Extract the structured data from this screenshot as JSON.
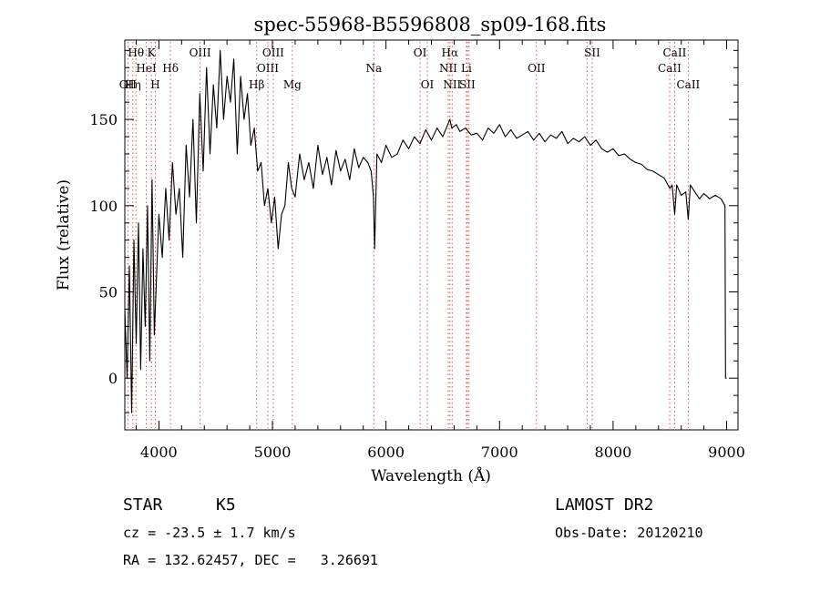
{
  "chart_data": {
    "type": "line",
    "title": "spec-55968-B5596808_sp09-168.fits",
    "xlabel": "Wavelength (Å)",
    "ylabel": "Flux (relative)",
    "xlim": [
      3700,
      9100
    ],
    "ylim": [
      -30,
      196
    ],
    "xticks": [
      4000,
      5000,
      6000,
      7000,
      8000,
      9000
    ],
    "yticks": [
      0,
      50,
      100,
      150
    ],
    "grid": false,
    "legend": "none",
    "line_color": "#000000",
    "marker_color": "#e05050",
    "series": [
      {
        "x": [
          3700,
          3720,
          3740,
          3760,
          3780,
          3800,
          3820,
          3840,
          3860,
          3880,
          3900,
          3920,
          3940,
          3960,
          3980,
          4000,
          4030,
          4060,
          4090,
          4120,
          4150,
          4180,
          4210,
          4240,
          4270,
          4300,
          4330,
          4360,
          4390,
          4420,
          4450,
          4480,
          4510,
          4540,
          4570,
          4600,
          4630,
          4660,
          4690,
          4720,
          4750,
          4780,
          4810,
          4840,
          4870,
          4900,
          4930,
          4960,
          4990,
          5020,
          5050,
          5080,
          5110,
          5140,
          5170,
          5200,
          5240,
          5280,
          5320,
          5360,
          5400,
          5440,
          5480,
          5520,
          5560,
          5600,
          5640,
          5680,
          5720,
          5760,
          5800,
          5840,
          5870,
          5890,
          5900,
          5920,
          5960,
          6000,
          6050,
          6100,
          6150,
          6200,
          6250,
          6300,
          6350,
          6400,
          6450,
          6500,
          6550,
          6563,
          6580,
          6620,
          6650,
          6700,
          6750,
          6800,
          6850,
          6900,
          6950,
          7000,
          7050,
          7100,
          7150,
          7200,
          7250,
          7300,
          7350,
          7400,
          7450,
          7500,
          7550,
          7600,
          7650,
          7700,
          7750,
          7800,
          7850,
          7900,
          7950,
          8000,
          8050,
          8100,
          8150,
          8200,
          8250,
          8300,
          8350,
          8400,
          8450,
          8500,
          8520,
          8542,
          8560,
          8600,
          8640,
          8662,
          8680,
          8720,
          8760,
          8800,
          8850,
          8900,
          8950,
          8985,
          8990,
          9000
        ],
        "y": [
          40,
          0,
          65,
          -20,
          80,
          20,
          90,
          5,
          75,
          30,
          100,
          10,
          115,
          25,
          60,
          95,
          70,
          110,
          80,
          125,
          95,
          110,
          70,
          135,
          105,
          150,
          90,
          165,
          120,
          180,
          130,
          170,
          145,
          190,
          150,
          175,
          160,
          185,
          130,
          175,
          150,
          165,
          135,
          145,
          120,
          125,
          100,
          110,
          90,
          105,
          75,
          95,
          100,
          125,
          110,
          105,
          130,
          115,
          125,
          110,
          135,
          118,
          128,
          112,
          132,
          120,
          127,
          115,
          133,
          122,
          128,
          125,
          120,
          105,
          75,
          130,
          125,
          135,
          128,
          130,
          138,
          133,
          140,
          136,
          144,
          138,
          145,
          140,
          148,
          150,
          145,
          147,
          143,
          145,
          141,
          142,
          138,
          145,
          142,
          147,
          140,
          144,
          139,
          141,
          143,
          138,
          142,
          137,
          141,
          139,
          143,
          136,
          139,
          137,
          140,
          135,
          138,
          133,
          131,
          133,
          129,
          130,
          127,
          125,
          124,
          121,
          120,
          118,
          116,
          110,
          112,
          95,
          112,
          106,
          108,
          92,
          112,
          108,
          104,
          107,
          104,
          106,
          104,
          100,
          0,
          0
        ]
      }
    ],
    "line_markers": [
      {
        "w": 3727,
        "label": "OII",
        "row": 3
      },
      {
        "w": 3771,
        "label": "Hη",
        "row": 3
      },
      {
        "w": 3798,
        "label": "Hθ",
        "row": 1
      },
      {
        "w": 3889,
        "label": "HeI",
        "row": 2
      },
      {
        "w": 3934,
        "label": "K",
        "row": 1
      },
      {
        "w": 3969,
        "label": "H",
        "row": 3
      },
      {
        "w": 4102,
        "label": "Hδ",
        "row": 2
      },
      {
        "w": 4363,
        "label": "OIII",
        "row": 1
      },
      {
        "w": 4861,
        "label": "Hβ",
        "row": 3
      },
      {
        "w": 4959,
        "label": "OIII",
        "row": 2
      },
      {
        "w": 5007,
        "label": "OIII",
        "row": 1
      },
      {
        "w": 5175,
        "label": "Mg",
        "row": 3
      },
      {
        "w": 5893,
        "label": "Na",
        "row": 2
      },
      {
        "w": 6300,
        "label": "OI",
        "row": 1
      },
      {
        "w": 6364,
        "label": "OI",
        "row": 3
      },
      {
        "w": 6548,
        "label": "NII",
        "row": 2
      },
      {
        "w": 6563,
        "label": "Hα",
        "row": 1
      },
      {
        "w": 6583,
        "label": "NII",
        "row": 3
      },
      {
        "w": 6716,
        "label": "SII",
        "row": 3
      },
      {
        "w": 6708,
        "label": "Li",
        "row": 2
      },
      {
        "w": 6731,
        "label": "",
        "row": 0
      },
      {
        "w": 7325,
        "label": "OII",
        "row": 2
      },
      {
        "w": 7771,
        "label": "",
        "row": 0
      },
      {
        "w": 7816,
        "label": "SII",
        "row": 1
      },
      {
        "w": 8498,
        "label": "CaII",
        "row": 2
      },
      {
        "w": 8542,
        "label": "CaII",
        "row": 1
      },
      {
        "w": 8662,
        "label": "CaII",
        "row": 3
      }
    ]
  },
  "info": {
    "object_class": "STAR",
    "subclass": "K5",
    "survey": "LAMOST DR2",
    "redshift": "cz = -23.5 ± 1.7 km/s",
    "obs_date": "Obs-Date: 20120210",
    "coords": "RA = 132.62457, DEC =   3.26691"
  }
}
